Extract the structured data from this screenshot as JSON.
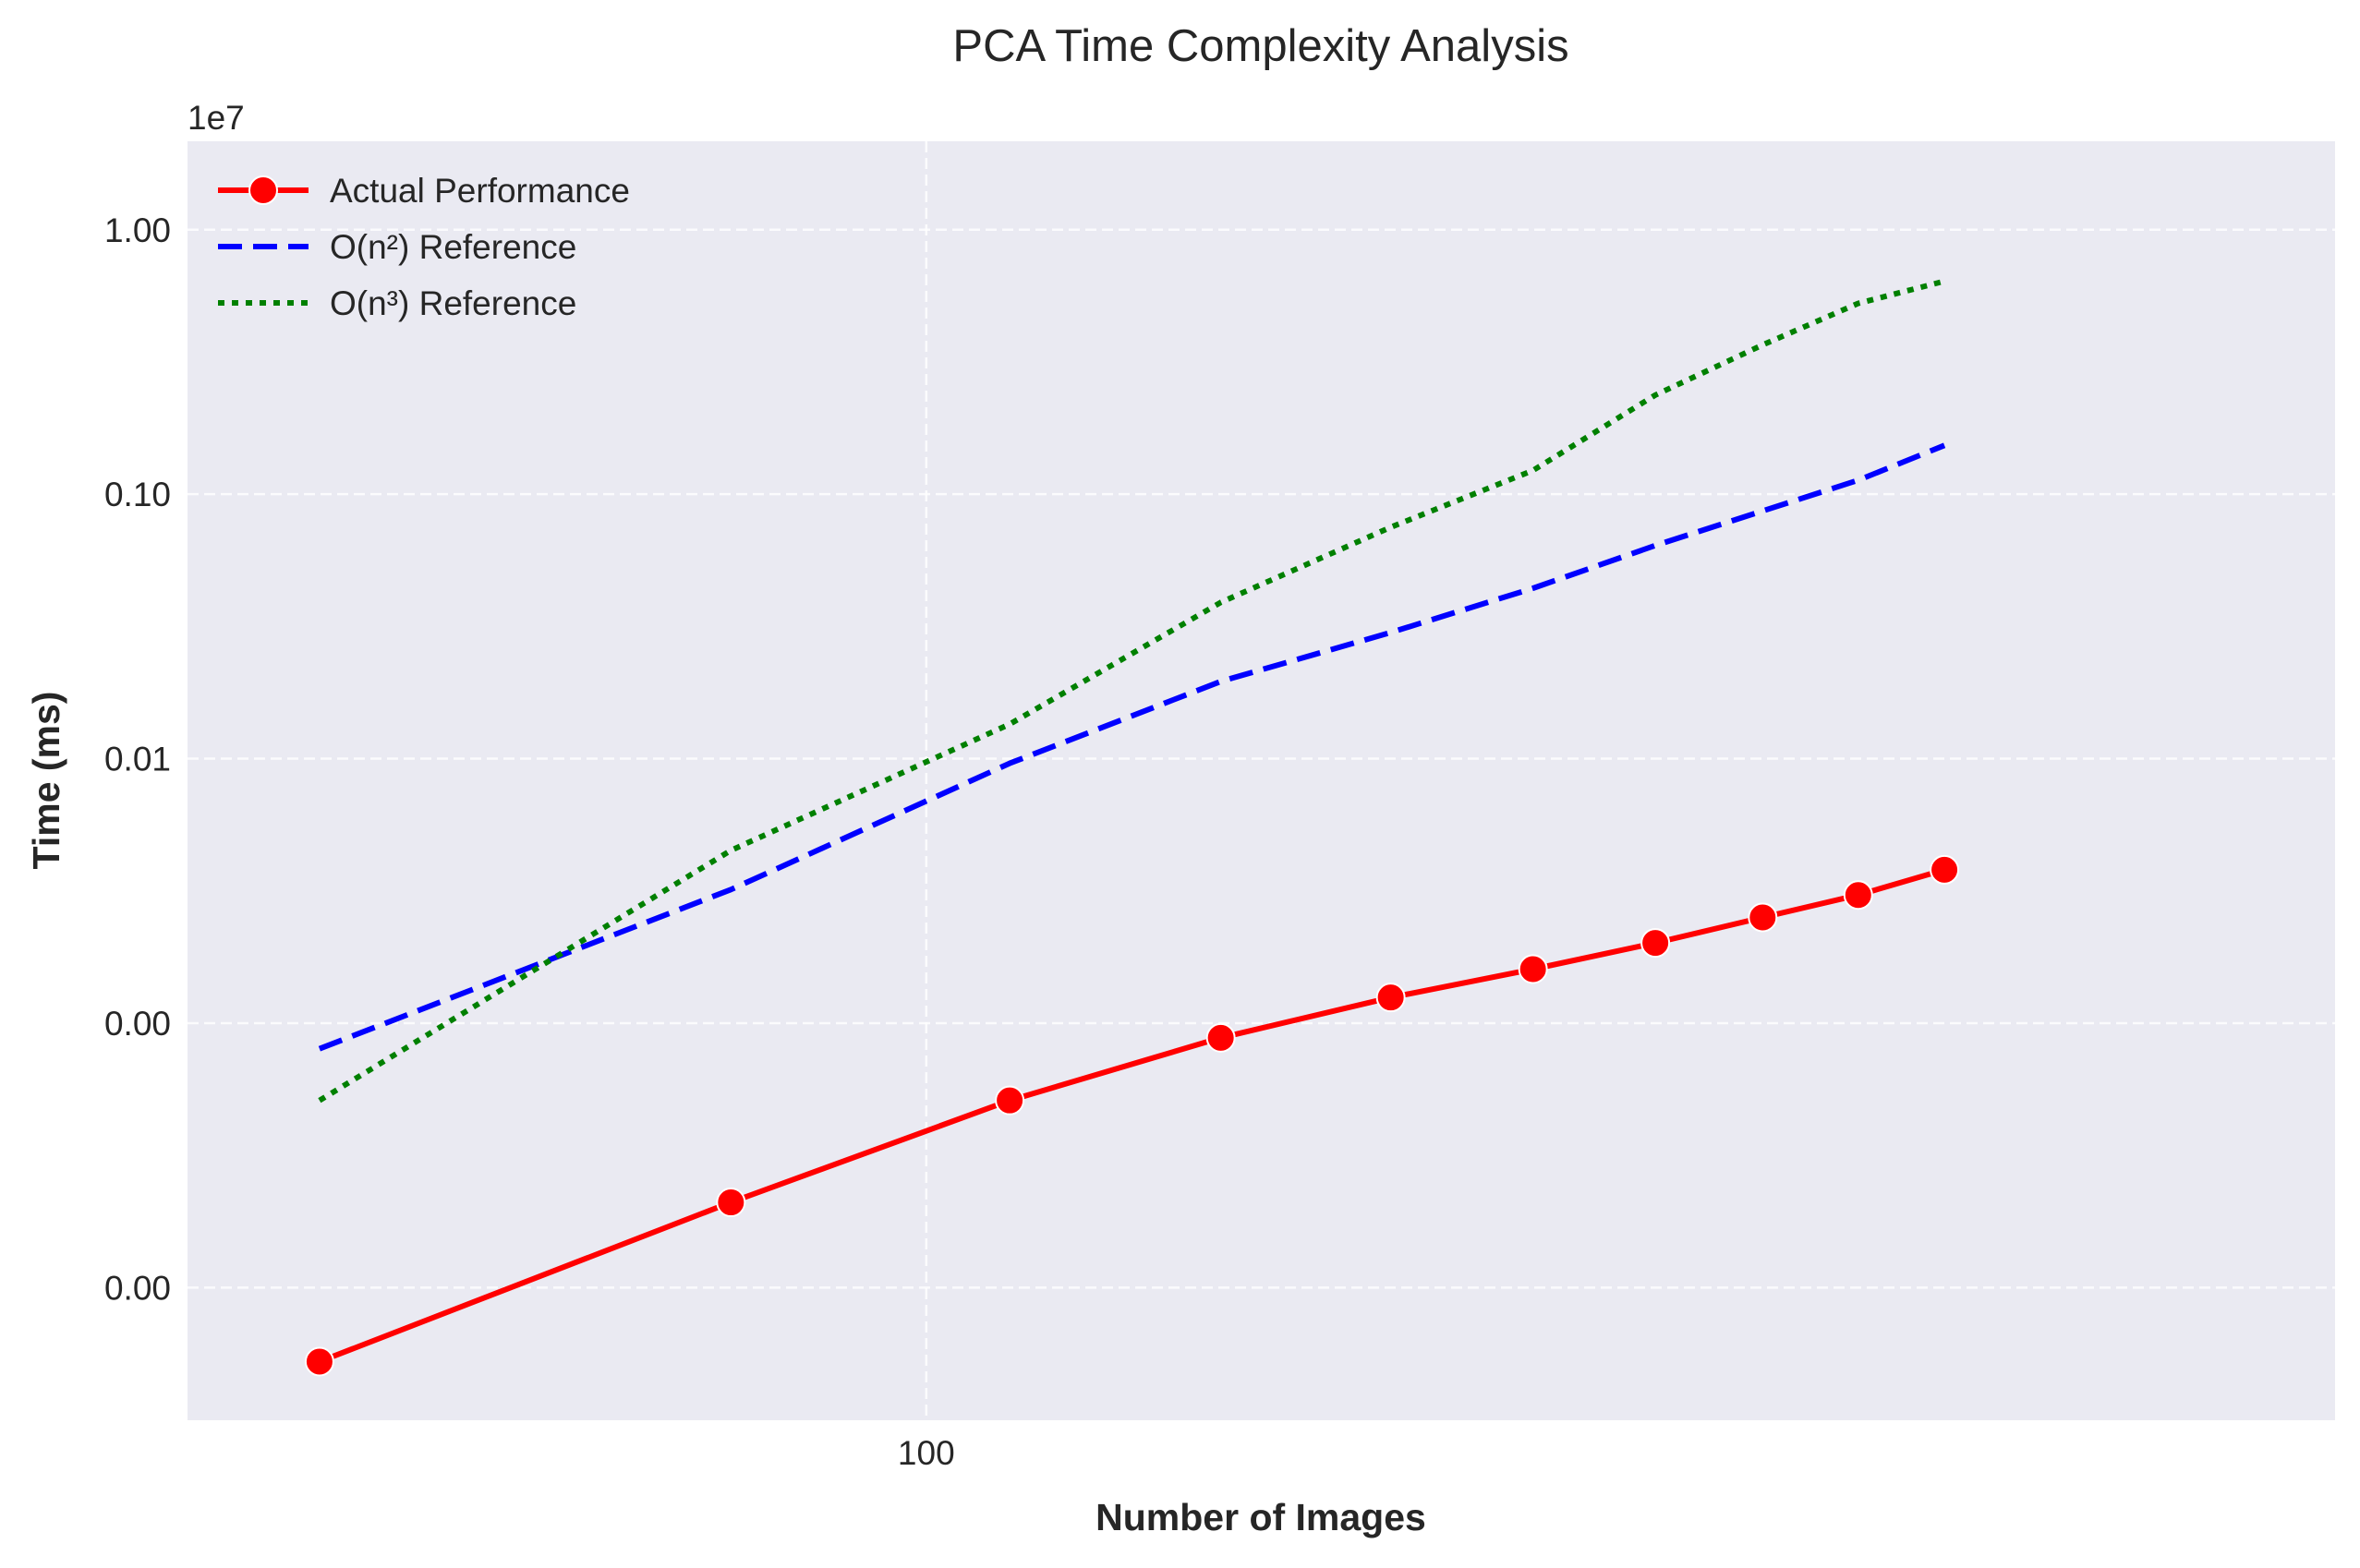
{
  "chart_data": {
    "type": "line",
    "title": "PCA Time Complexity Analysis",
    "xlabel": "Number of Images",
    "ylabel": "Time (ms)",
    "x_scale": "log",
    "y_scale": "log",
    "x_ticks": [
      {
        "value": 100,
        "label": "100"
      }
    ],
    "y_ticks": [
      {
        "value": 1000,
        "label": "0.00"
      },
      {
        "value": 10000,
        "label": "0.00"
      },
      {
        "value": 100000,
        "label": "0.01"
      },
      {
        "value": 1000000,
        "label": "0.10"
      },
      {
        "value": 10000000,
        "label": "1.00"
      }
    ],
    "y_offset_label": "1e7",
    "xlim": [
      43,
      500
    ],
    "ylim": [
      315,
      21600000
    ],
    "grid": true,
    "legend_position": "top-left",
    "series": [
      {
        "name": "Actual Performance",
        "style": "solid-marker",
        "color": "#ff0000",
        "x": [
          50,
          80,
          110,
          140,
          170,
          200,
          230,
          260,
          290,
          320
        ],
        "y": [
          525,
          2100,
          5100,
          8800,
          12500,
          16000,
          20100,
          25100,
          30500,
          38000
        ]
      },
      {
        "name": "O(n²) Reference",
        "style": "dashed",
        "color": "#0000ff",
        "x": [
          50,
          80,
          110,
          140,
          170,
          200,
          230,
          260,
          290,
          320
        ],
        "y": [
          8000,
          32000,
          96000,
          196000,
          300000,
          441000,
          640000,
          864000,
          1130000,
          1530000
        ]
      },
      {
        "name": "O(n³) Reference",
        "style": "dotted",
        "color": "#008000",
        "x": [
          50,
          80,
          110,
          140,
          170,
          200,
          230,
          260,
          290,
          320
        ],
        "y": [
          5100,
          45000,
          135000,
          390000,
          750000,
          1230000,
          2370000,
          3670000,
          5270000,
          6390000
        ]
      }
    ]
  }
}
